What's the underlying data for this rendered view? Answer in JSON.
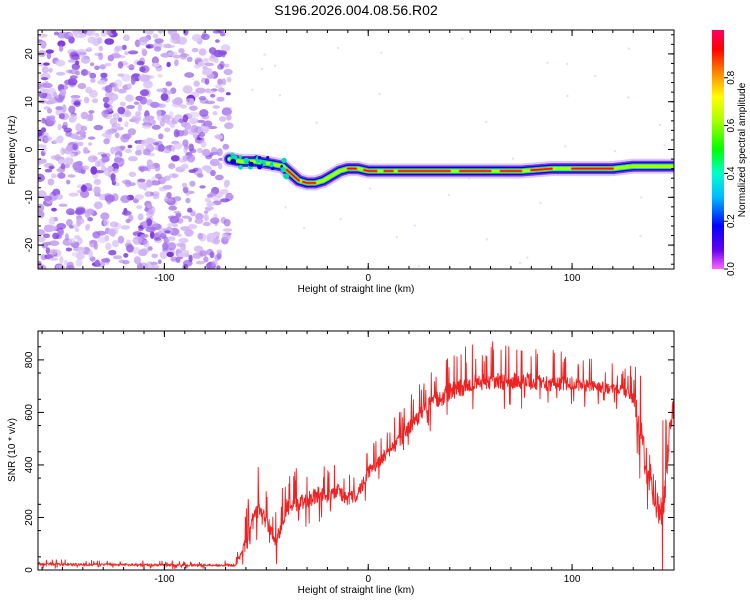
{
  "title": "S196.2026.004.08.56.R02",
  "chart_data": [
    {
      "type": "heatmap",
      "title": "S196.2026.004.08.56.R02",
      "xlabel": "Height of straight line (km)",
      "ylabel": "Frequency (Hz)",
      "xlim": [
        -162,
        150
      ],
      "ylim": [
        -25,
        25
      ],
      "xticks": [
        -100,
        0,
        100
      ],
      "yticks": [
        -20,
        -10,
        0,
        10,
        20
      ],
      "noise_region_x": [
        -162,
        -68
      ],
      "ridge": {
        "x": [
          -68,
          -62,
          -55,
          -48,
          -42,
          -38,
          -34,
          -30,
          -26,
          -22,
          -18,
          -14,
          -10,
          -5,
          0,
          10,
          20,
          30,
          45,
          60,
          75,
          90,
          100,
          110,
          120,
          130,
          140,
          150
        ],
        "y": [
          -2,
          -2.5,
          -2.5,
          -3,
          -3.5,
          -5,
          -6.5,
          -7,
          -7,
          -6.5,
          -5.5,
          -4.5,
          -4,
          -4,
          -4.5,
          -4.5,
          -4.5,
          -4.5,
          -4.5,
          -4.5,
          -4.5,
          -4,
          -4,
          -4,
          -4,
          -3.5,
          -3.5,
          -3.5
        ]
      },
      "colorbar": {
        "label": "Normalized spectral amplitude",
        "ticks": [
          "0.0",
          "0.2",
          "0.4",
          "0.6",
          "0.8"
        ],
        "range": [
          0,
          1
        ]
      }
    },
    {
      "type": "line",
      "xlabel": "Height of straight line (km)",
      "ylabel": "SNR (10 * v/v)",
      "xlim": [
        -162,
        150
      ],
      "ylim": [
        0,
        910
      ],
      "xticks": [
        -100,
        0,
        100
      ],
      "yticks": [
        0,
        200,
        400,
        600,
        800
      ],
      "series": [
        {
          "name": "SNR",
          "color": "#ee2222",
          "x": [
            -162,
            -140,
            -120,
            -100,
            -80,
            -65,
            -58,
            -55,
            -50,
            -45,
            -40,
            -35,
            -30,
            -25,
            -20,
            -15,
            -10,
            -5,
            0,
            5,
            10,
            15,
            20,
            25,
            30,
            40,
            50,
            60,
            70,
            80,
            90,
            100,
            110,
            120,
            125,
            130,
            133,
            136,
            139,
            142,
            145,
            148,
            150
          ],
          "y": [
            25,
            22,
            22,
            20,
            20,
            20,
            150,
            250,
            200,
            120,
            250,
            260,
            280,
            300,
            290,
            310,
            280,
            300,
            380,
            420,
            460,
            500,
            550,
            600,
            640,
            690,
            720,
            730,
            730,
            730,
            720,
            720,
            710,
            700,
            690,
            670,
            580,
            450,
            380,
            250,
            300,
            550,
            650
          ],
          "spread": [
            20,
            15,
            15,
            15,
            15,
            15,
            150,
            150,
            120,
            100,
            120,
            120,
            120,
            120,
            100,
            100,
            100,
            100,
            100,
            90,
            90,
            100,
            100,
            110,
            120,
            130,
            130,
            130,
            120,
            120,
            110,
            100,
            90,
            80,
            80,
            100,
            200,
            300,
            300,
            300,
            300,
            200,
            150
          ]
        }
      ]
    }
  ]
}
